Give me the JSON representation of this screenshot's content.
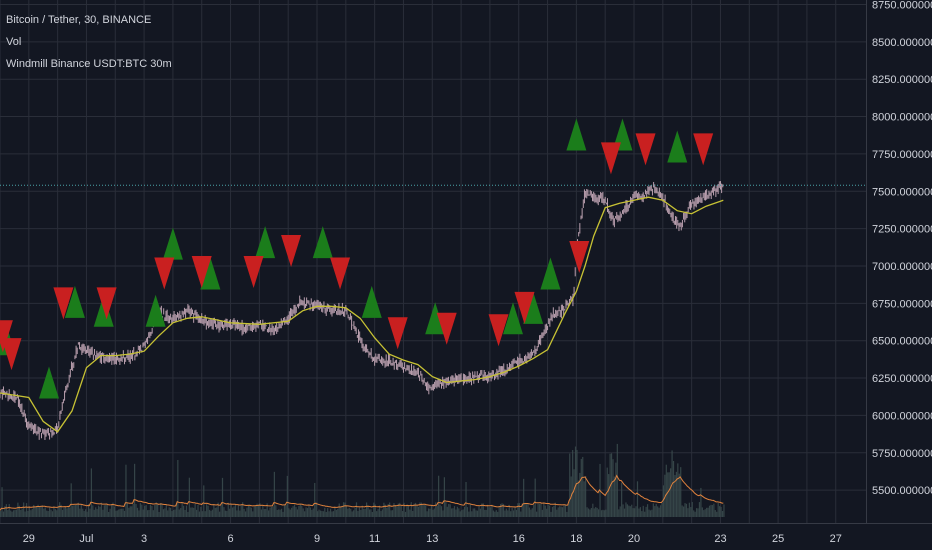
{
  "header": {
    "symbol_line": "Bitcoin / Tether, 30, BINANCE",
    "volume_label": "Vol",
    "strategy_label": "Windmill Binance USDT:BTC 30m"
  },
  "chart_data": {
    "type": "candlestick",
    "title": "Bitcoin / Tether, 30, BINANCE",
    "xlabel": "",
    "ylabel": "",
    "x_ticks": [
      "29",
      "Jul",
      "3",
      "6",
      "9",
      "11",
      "13",
      "16",
      "18",
      "20",
      "23",
      "25",
      "27"
    ],
    "y_ticks": [
      5500,
      5750,
      6000,
      6250,
      6500,
      6750,
      7000,
      7250,
      7500,
      7750,
      8000,
      8250,
      8500,
      8750
    ],
    "y_tick_labels": [
      "5500.00000000",
      "5750.00000000",
      "6000.00000000",
      "6250.00000000",
      "6500.00000000",
      "6750.00000000",
      "7000.00000000",
      "7250.00000000",
      "7500.00000000",
      "7750.00000000",
      "8000.00000000",
      "8250.00000000",
      "8500.00000000",
      "8750.00000000"
    ],
    "ylim": [
      5280,
      8780
    ],
    "x_days": [
      28,
      29,
      30,
      31,
      32,
      33,
      34,
      35,
      36,
      37,
      38,
      39,
      40,
      41,
      42,
      43,
      44,
      45,
      46,
      47,
      48,
      49,
      50,
      51,
      52,
      53,
      54,
      55,
      56,
      57
    ],
    "x_day_tick_map": {
      "29": 29,
      "Jul": 31,
      "3": 33,
      "6": 36,
      "9": 39,
      "11": 41,
      "13": 43,
      "16": 46,
      "18": 48,
      "20": 50,
      "23": 53,
      "25": 55,
      "27": 57
    },
    "x_range_days": [
      28.0,
      58.05
    ],
    "last_day": 53.1,
    "last_price": 7540,
    "price_series": {
      "name": "Bitcoin / Tether",
      "x": [
        28.0,
        28.6,
        29.0,
        29.5,
        30.0,
        30.3,
        30.7,
        31.0,
        31.5,
        32.0,
        32.5,
        33.0,
        33.5,
        34.0,
        34.5,
        35.0,
        35.5,
        36.0,
        36.5,
        37.0,
        37.5,
        38.0,
        38.4,
        39.0,
        39.5,
        40.0,
        40.4,
        40.7,
        41.0,
        41.5,
        42.0,
        42.5,
        42.9,
        43.0,
        43.5,
        44.0,
        44.5,
        45.0,
        45.5,
        46.0,
        46.5,
        47.0,
        47.2,
        47.5,
        47.9,
        48.0,
        48.3,
        48.6,
        49.0,
        49.3,
        49.6,
        50.0,
        50.3,
        50.6,
        51.0,
        51.3,
        51.6,
        52.0,
        52.5,
        53.1
      ],
      "y": [
        6150,
        6120,
        5930,
        5870,
        5910,
        6180,
        6470,
        6440,
        6390,
        6380,
        6390,
        6460,
        6690,
        6650,
        6700,
        6640,
        6600,
        6620,
        6580,
        6610,
        6570,
        6650,
        6760,
        6730,
        6710,
        6700,
        6540,
        6440,
        6380,
        6360,
        6320,
        6290,
        6170,
        6180,
        6230,
        6250,
        6250,
        6260,
        6300,
        6360,
        6420,
        6600,
        6680,
        6700,
        6780,
        7090,
        7490,
        7460,
        7450,
        7300,
        7360,
        7460,
        7470,
        7520,
        7460,
        7330,
        7260,
        7420,
        7470,
        7540
      ]
    },
    "ma_series": {
      "name": "",
      "x": [
        28.0,
        29.0,
        29.5,
        30.0,
        30.5,
        31.0,
        31.5,
        32.0,
        32.5,
        33.0,
        33.5,
        34.0,
        34.5,
        35.0,
        35.5,
        36.0,
        37.0,
        38.0,
        38.5,
        39.0,
        39.5,
        40.0,
        40.5,
        41.0,
        41.5,
        42.0,
        42.5,
        43.0,
        43.5,
        44.0,
        44.5,
        45.0,
        45.5,
        46.0,
        46.5,
        47.0,
        47.3,
        47.6,
        48.0,
        48.3,
        48.6,
        49.0,
        49.5,
        50.0,
        50.5,
        51.0,
        51.5,
        52.0,
        52.5,
        53.1
      ],
      "y": [
        6150,
        6120,
        5960,
        5890,
        6030,
        6320,
        6400,
        6400,
        6410,
        6430,
        6530,
        6620,
        6650,
        6660,
        6640,
        6620,
        6610,
        6630,
        6700,
        6730,
        6730,
        6720,
        6650,
        6520,
        6410,
        6370,
        6340,
        6260,
        6220,
        6230,
        6240,
        6260,
        6290,
        6330,
        6380,
        6440,
        6560,
        6680,
        6830,
        7000,
        7200,
        7390,
        7420,
        7440,
        7460,
        7440,
        7370,
        7350,
        7400,
        7440
      ]
    },
    "buy_markers": {
      "name": "",
      "points": [
        [
          28.2,
          6510
        ],
        [
          29.7,
          6220
        ],
        [
          30.6,
          6760
        ],
        [
          31.6,
          6700
        ],
        [
          33.4,
          6700
        ],
        [
          34.0,
          7150
        ],
        [
          35.3,
          6950
        ],
        [
          37.2,
          7160
        ],
        [
          39.2,
          7160
        ],
        [
          40.9,
          6760
        ],
        [
          43.1,
          6650
        ],
        [
          45.8,
          6650
        ],
        [
          46.5,
          6720
        ],
        [
          47.1,
          6950
        ],
        [
          48.0,
          7880
        ],
        [
          49.6,
          7880
        ],
        [
          51.5,
          7800
        ]
      ]
    },
    "sell_markers": {
      "name": "",
      "points": [
        [
          28.1,
          6530
        ],
        [
          28.4,
          6410
        ],
        [
          30.2,
          6750
        ],
        [
          31.7,
          6750
        ],
        [
          33.7,
          6950
        ],
        [
          35.0,
          6960
        ],
        [
          36.8,
          6960
        ],
        [
          38.1,
          7100
        ],
        [
          39.8,
          6950
        ],
        [
          41.8,
          6550
        ],
        [
          43.5,
          6580
        ],
        [
          45.3,
          6570
        ],
        [
          46.2,
          6720
        ],
        [
          48.1,
          7060
        ],
        [
          49.2,
          7720
        ],
        [
          50.4,
          7780
        ],
        [
          52.4,
          7780
        ]
      ]
    },
    "volume": {
      "name": "Vol",
      "axis": "overlay-bottom",
      "avg_line_color": "#e0823d"
    },
    "colors": {
      "background": "#131722",
      "grid": "#2a2e39",
      "price": "#d7b7c7",
      "ma": "#c7c234",
      "buy": "#1b7d1b",
      "sell": "#c92020",
      "volume_bar": "#3a4a4d",
      "last_price_line": "#4aa3a8",
      "axis_text": "#d1d4dc"
    },
    "grid": true,
    "legend": "top-left"
  }
}
